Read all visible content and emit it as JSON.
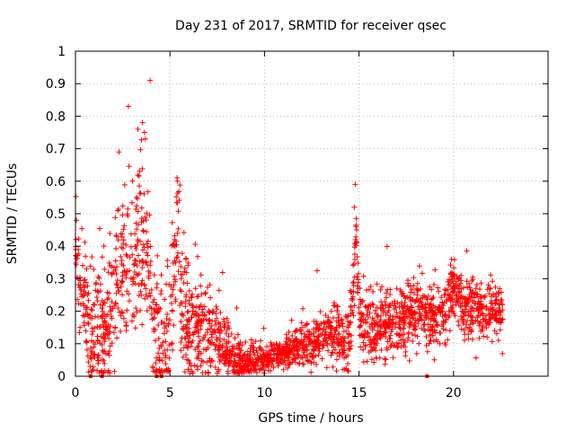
{
  "chart_data": {
    "type": "scatter",
    "title": "Day 231 of 2017, SRMTID for receiver qsec",
    "xlabel": "GPS time / hours",
    "ylabel": "SRMTID / TECUs",
    "xlim": [
      0,
      25
    ],
    "ylim": [
      0,
      1
    ],
    "xticks": [
      "0",
      "5",
      "10",
      "15",
      "20"
    ],
    "yticks": [
      "0",
      "0.1",
      "0.2",
      "0.3",
      "0.4",
      "0.5",
      "0.6",
      "0.7",
      "0.8",
      "0.9",
      "1"
    ],
    "grid": true,
    "marker": "+",
    "color": "#ff0000",
    "envelope": {
      "x": [
        0.0,
        0.1,
        0.3,
        0.5,
        0.8,
        1.0,
        1.3,
        1.6,
        1.9,
        2.1,
        2.3,
        2.5,
        2.8,
        3.0,
        3.3,
        3.6,
        3.9,
        4.1,
        4.4,
        4.7,
        5.0,
        5.2,
        5.4,
        5.6,
        6.0,
        6.5,
        7.0,
        7.5,
        8.0,
        8.5,
        9.0,
        9.5,
        10.0,
        10.5,
        11.0,
        11.5,
        12.0,
        12.5,
        13.0,
        13.5,
        14.0,
        14.5,
        14.7,
        14.85,
        15.0,
        15.3,
        15.6,
        16.0,
        16.5,
        17.0,
        17.5,
        18.0,
        18.5,
        19.0,
        19.5,
        20.0,
        20.5,
        21.0,
        21.5,
        22.0,
        22.6
      ],
      "y": [
        0.4,
        0.33,
        0.26,
        0.21,
        0.14,
        0.12,
        0.12,
        0.13,
        0.22,
        0.29,
        0.33,
        0.3,
        0.34,
        0.33,
        0.36,
        0.4,
        0.3,
        0.15,
        0.11,
        0.09,
        0.1,
        0.3,
        0.47,
        0.2,
        0.17,
        0.15,
        0.13,
        0.12,
        0.08,
        0.05,
        0.04,
        0.04,
        0.05,
        0.06,
        0.07,
        0.08,
        0.09,
        0.1,
        0.12,
        0.13,
        0.12,
        0.11,
        0.25,
        0.45,
        0.2,
        0.15,
        0.16,
        0.15,
        0.17,
        0.18,
        0.18,
        0.19,
        0.19,
        0.17,
        0.2,
        0.27,
        0.2,
        0.21,
        0.2,
        0.2,
        0.18
      ]
    },
    "spread": {
      "x": [
        0.0,
        2.0,
        4.0,
        5.5,
        8.0,
        10.0,
        12.5,
        14.8,
        15.5,
        20.0,
        22.6
      ],
      "y": [
        0.07,
        0.12,
        0.14,
        0.1,
        0.04,
        0.02,
        0.03,
        0.05,
        0.05,
        0.05,
        0.04
      ]
    },
    "peaks": [
      {
        "x": 0.05,
        "y": 0.48
      },
      {
        "x": 2.3,
        "y": 0.69
      },
      {
        "x": 2.8,
        "y": 0.83
      },
      {
        "x": 3.3,
        "y": 0.76
      },
      {
        "x": 3.55,
        "y": 0.78
      },
      {
        "x": 3.65,
        "y": 0.75
      },
      {
        "x": 3.7,
        "y": 0.73
      },
      {
        "x": 3.95,
        "y": 0.91
      },
      {
        "x": 5.4,
        "y": 0.6
      },
      {
        "x": 14.8,
        "y": 0.59
      },
      {
        "x": 14.75,
        "y": 0.52
      }
    ],
    "zero_markers": [
      0.8,
      1.4,
      4.3,
      4.55,
      18.6
    ],
    "point_count": 2400,
    "x_range": [
      0.0,
      22.6
    ]
  }
}
